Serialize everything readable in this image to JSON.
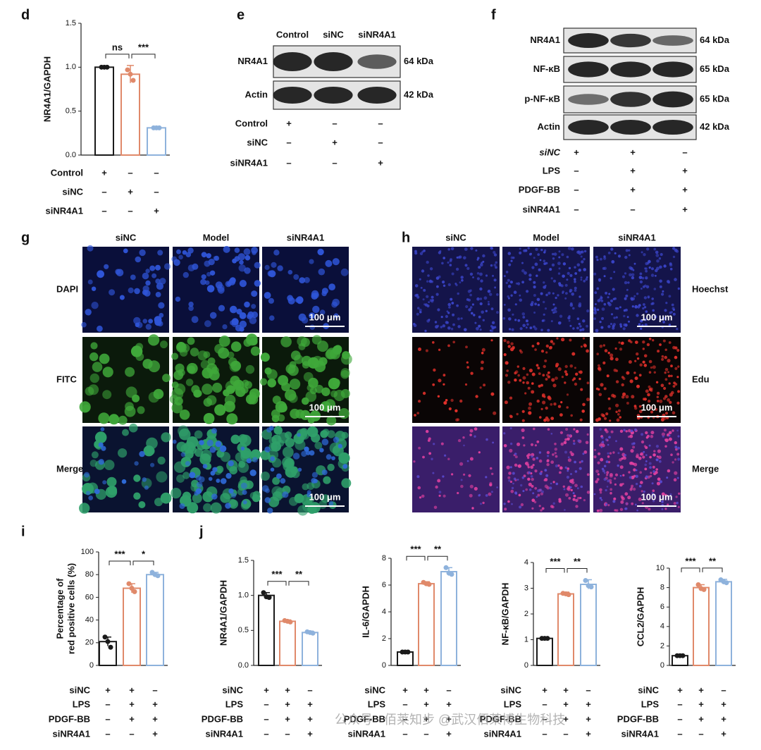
{
  "chart_data": [
    {
      "type": "bar",
      "panel": "d",
      "ylabel": "NR4A1/GAPDH",
      "ylim": [
        0,
        1.5
      ],
      "yticks": [
        {
          "value": 0,
          "label": "0.0"
        },
        {
          "value": 0.5,
          "label": "0.5"
        },
        {
          "value": 1,
          "label": "1.0"
        },
        {
          "value": 1.5,
          "label": "1.5"
        }
      ],
      "colors": [
        "#1a1a1a",
        "#e0896a",
        "#8eb2dc"
      ],
      "values": [
        1.0,
        0.92,
        0.31
      ],
      "errors": [
        0.01,
        0.1,
        0.005
      ],
      "points": [
        [
          1.0,
          1.0,
          1.0
        ],
        [
          0.97,
          0.92,
          0.85
        ],
        [
          0.31,
          0.31,
          0.31
        ]
      ],
      "significance": [
        "ns",
        "***"
      ],
      "conditions": [
        {
          "label": "Control",
          "signs": [
            "+",
            "–",
            "–"
          ]
        },
        {
          "label": "siNC",
          "signs": [
            "–",
            "+",
            "–"
          ]
        },
        {
          "label": "siNR4A1",
          "signs": [
            "–",
            "–",
            "+"
          ]
        }
      ]
    },
    {
      "type": "bar",
      "panel": "i",
      "ylabel": [
        "Percentage of",
        "red positive cells (%)"
      ],
      "ylim": [
        0,
        100
      ],
      "yticks": [
        0,
        20,
        40,
        60,
        80,
        100
      ],
      "colors": [
        "#1a1a1a",
        "#e0896a",
        "#8eb2dc"
      ],
      "values": [
        21,
        68,
        80
      ],
      "errors": [
        4,
        4,
        2
      ],
      "points": [
        [
          25,
          21,
          16
        ],
        [
          72,
          68,
          65
        ],
        [
          82,
          80,
          79
        ]
      ],
      "significance": [
        "***",
        "*"
      ],
      "conditions": [
        {
          "label": "siNC",
          "signs": [
            "+",
            "+",
            "–"
          ]
        },
        {
          "label": "LPS",
          "signs": [
            "–",
            "+",
            "+"
          ]
        },
        {
          "label": "PDGF-BB",
          "signs": [
            "–",
            "+",
            "+"
          ]
        },
        {
          "label": "siNR4A1",
          "signs": [
            "–",
            "–",
            "+"
          ]
        }
      ]
    },
    {
      "type": "bar",
      "panel": "j",
      "ylabel": "NR4A1/GAPDH",
      "ylim": [
        0,
        1.5
      ],
      "yticks": [
        {
          "value": 0,
          "label": "0.0"
        },
        {
          "value": 0.5,
          "label": "0.5"
        },
        {
          "value": 1,
          "label": "1.0"
        },
        {
          "value": 1.5,
          "label": "1.5"
        }
      ],
      "colors": [
        "#1a1a1a",
        "#e0896a",
        "#8eb2dc"
      ],
      "values": [
        1.0,
        0.63,
        0.47
      ],
      "errors": [
        0.04,
        0.02,
        0.02
      ],
      "points": [
        [
          1.04,
          0.98,
          0.97
        ],
        [
          0.64,
          0.63,
          0.62
        ],
        [
          0.48,
          0.47,
          0.46
        ]
      ],
      "significance": [
        "***",
        "**"
      ],
      "conditions": [
        {
          "label": "siNC",
          "signs": [
            "+",
            "+",
            "–"
          ]
        },
        {
          "label": "LPS",
          "signs": [
            "–",
            "+",
            "+"
          ]
        },
        {
          "label": "PDGF-BB",
          "signs": [
            "–",
            "+",
            "+"
          ]
        },
        {
          "label": "siNR4A1",
          "signs": [
            "–",
            "–",
            "+"
          ]
        }
      ]
    },
    {
      "type": "bar",
      "ylabel": "IL-6/GAPDH",
      "ylim": [
        0,
        8
      ],
      "yticks": [
        0,
        2,
        4,
        6,
        8
      ],
      "colors": [
        "#1a1a1a",
        "#e0896a",
        "#8eb2dc"
      ],
      "values": [
        1.0,
        6.1,
        7.0
      ],
      "errors": [
        0.02,
        0.15,
        0.3
      ],
      "points": [
        [
          1.0,
          1.0,
          1.0
        ],
        [
          6.2,
          6.1,
          6.05
        ],
        [
          7.3,
          6.9,
          6.8
        ]
      ],
      "significance": [
        "***",
        "**"
      ],
      "conditions": [
        {
          "label": "siNC",
          "signs": [
            "+",
            "+",
            "–"
          ]
        },
        {
          "label": "LPS",
          "signs": [
            "–",
            "+",
            "+"
          ]
        },
        {
          "label": "PDGF-BB",
          "signs": [
            "–",
            "+",
            "+"
          ]
        },
        {
          "label": "siNR4A1",
          "signs": [
            "–",
            "–",
            "+"
          ]
        }
      ]
    },
    {
      "type": "bar",
      "ylabel": "NF-κB/GAPDH",
      "ylim": [
        0,
        4
      ],
      "yticks": [
        0,
        1,
        2,
        3,
        4
      ],
      "colors": [
        "#1a1a1a",
        "#e0896a",
        "#8eb2dc"
      ],
      "values": [
        1.05,
        2.78,
        3.15
      ],
      "errors": [
        0.02,
        0.07,
        0.18
      ],
      "points": [
        [
          1.05,
          1.05,
          1.05
        ],
        [
          2.8,
          2.78,
          2.75
        ],
        [
          3.3,
          3.1,
          3.05
        ]
      ],
      "significance": [
        "***",
        "**"
      ],
      "conditions": [
        {
          "label": "siNC",
          "signs": [
            "+",
            "+",
            "–"
          ]
        },
        {
          "label": "LPS",
          "signs": [
            "–",
            "+",
            "+"
          ]
        },
        {
          "label": "PDGF-BB",
          "signs": [
            "–",
            "+",
            "+"
          ]
        },
        {
          "label": "siNR4A1",
          "signs": [
            "–",
            "–",
            "+"
          ]
        }
      ]
    },
    {
      "type": "bar",
      "ylabel": "CCL2/GAPDH",
      "ylim": [
        0,
        10
      ],
      "yticks": [
        0,
        2,
        4,
        6,
        8,
        10
      ],
      "colors": [
        "#1a1a1a",
        "#e0896a",
        "#8eb2dc"
      ],
      "values": [
        1.0,
        8.0,
        8.6
      ],
      "errors": [
        0.02,
        0.3,
        0.25
      ],
      "points": [
        [
          1.0,
          1.0,
          1.0
        ],
        [
          8.3,
          7.9,
          7.8
        ],
        [
          8.8,
          8.6,
          8.5
        ]
      ],
      "significance": [
        "***",
        "**"
      ],
      "conditions": [
        {
          "label": "siNC",
          "signs": [
            "+",
            "+",
            "–"
          ]
        },
        {
          "label": "LPS",
          "signs": [
            "–",
            "+",
            "+"
          ]
        },
        {
          "label": "PDGF-BB",
          "signs": [
            "–",
            "+",
            "+"
          ]
        },
        {
          "label": "siNR4A1",
          "signs": [
            "–",
            "–",
            "+"
          ]
        }
      ]
    }
  ],
  "blots": [
    {
      "panel": "e",
      "lanes": [
        "Control",
        "siNC",
        "siNR4A1"
      ],
      "bands": [
        {
          "name": "NR4A1",
          "size": "64 kDa"
        },
        {
          "name": "Actin",
          "size": "42 kDa"
        }
      ],
      "conditions": [
        {
          "label": "Control",
          "signs": [
            "+",
            "–",
            "–"
          ]
        },
        {
          "label": "siNC",
          "signs": [
            "–",
            "+",
            "–"
          ]
        },
        {
          "label": "siNR4A1",
          "signs": [
            "–",
            "–",
            "+"
          ]
        }
      ]
    },
    {
      "panel": "f",
      "bands": [
        {
          "name": "NR4A1",
          "size": "64 kDa"
        },
        {
          "name": "NF-κB",
          "size": "65 kDa"
        },
        {
          "name": "p-NF-κB",
          "size": "65 kDa"
        },
        {
          "name": "Actin",
          "size": "42 kDa"
        }
      ],
      "conditions": [
        {
          "label": "siNC",
          "signs": [
            "+",
            "+",
            "–"
          ]
        },
        {
          "label": "LPS",
          "signs": [
            "–",
            "+",
            "+"
          ]
        },
        {
          "label": "PDGF-BB",
          "signs": [
            "–",
            "+",
            "+"
          ]
        },
        {
          "label": "siNR4A1",
          "signs": [
            "–",
            "–",
            "+"
          ]
        }
      ]
    }
  ],
  "images": [
    {
      "panel": "g",
      "columns": [
        "siNC",
        "Model",
        "siNR4A1"
      ],
      "rows": [
        "DAPI",
        "FITC",
        "Merge"
      ],
      "scale_bar": "100 μm"
    },
    {
      "panel": "h",
      "columns": [
        "siNC",
        "Model",
        "siNR4A1"
      ],
      "rows": [
        "Hoechst",
        "Edu",
        "Merge"
      ],
      "scale_bar": "100 μm"
    }
  ],
  "watermark": "公众号 · 佰莱知步 @武汉佰莱博生物科技"
}
